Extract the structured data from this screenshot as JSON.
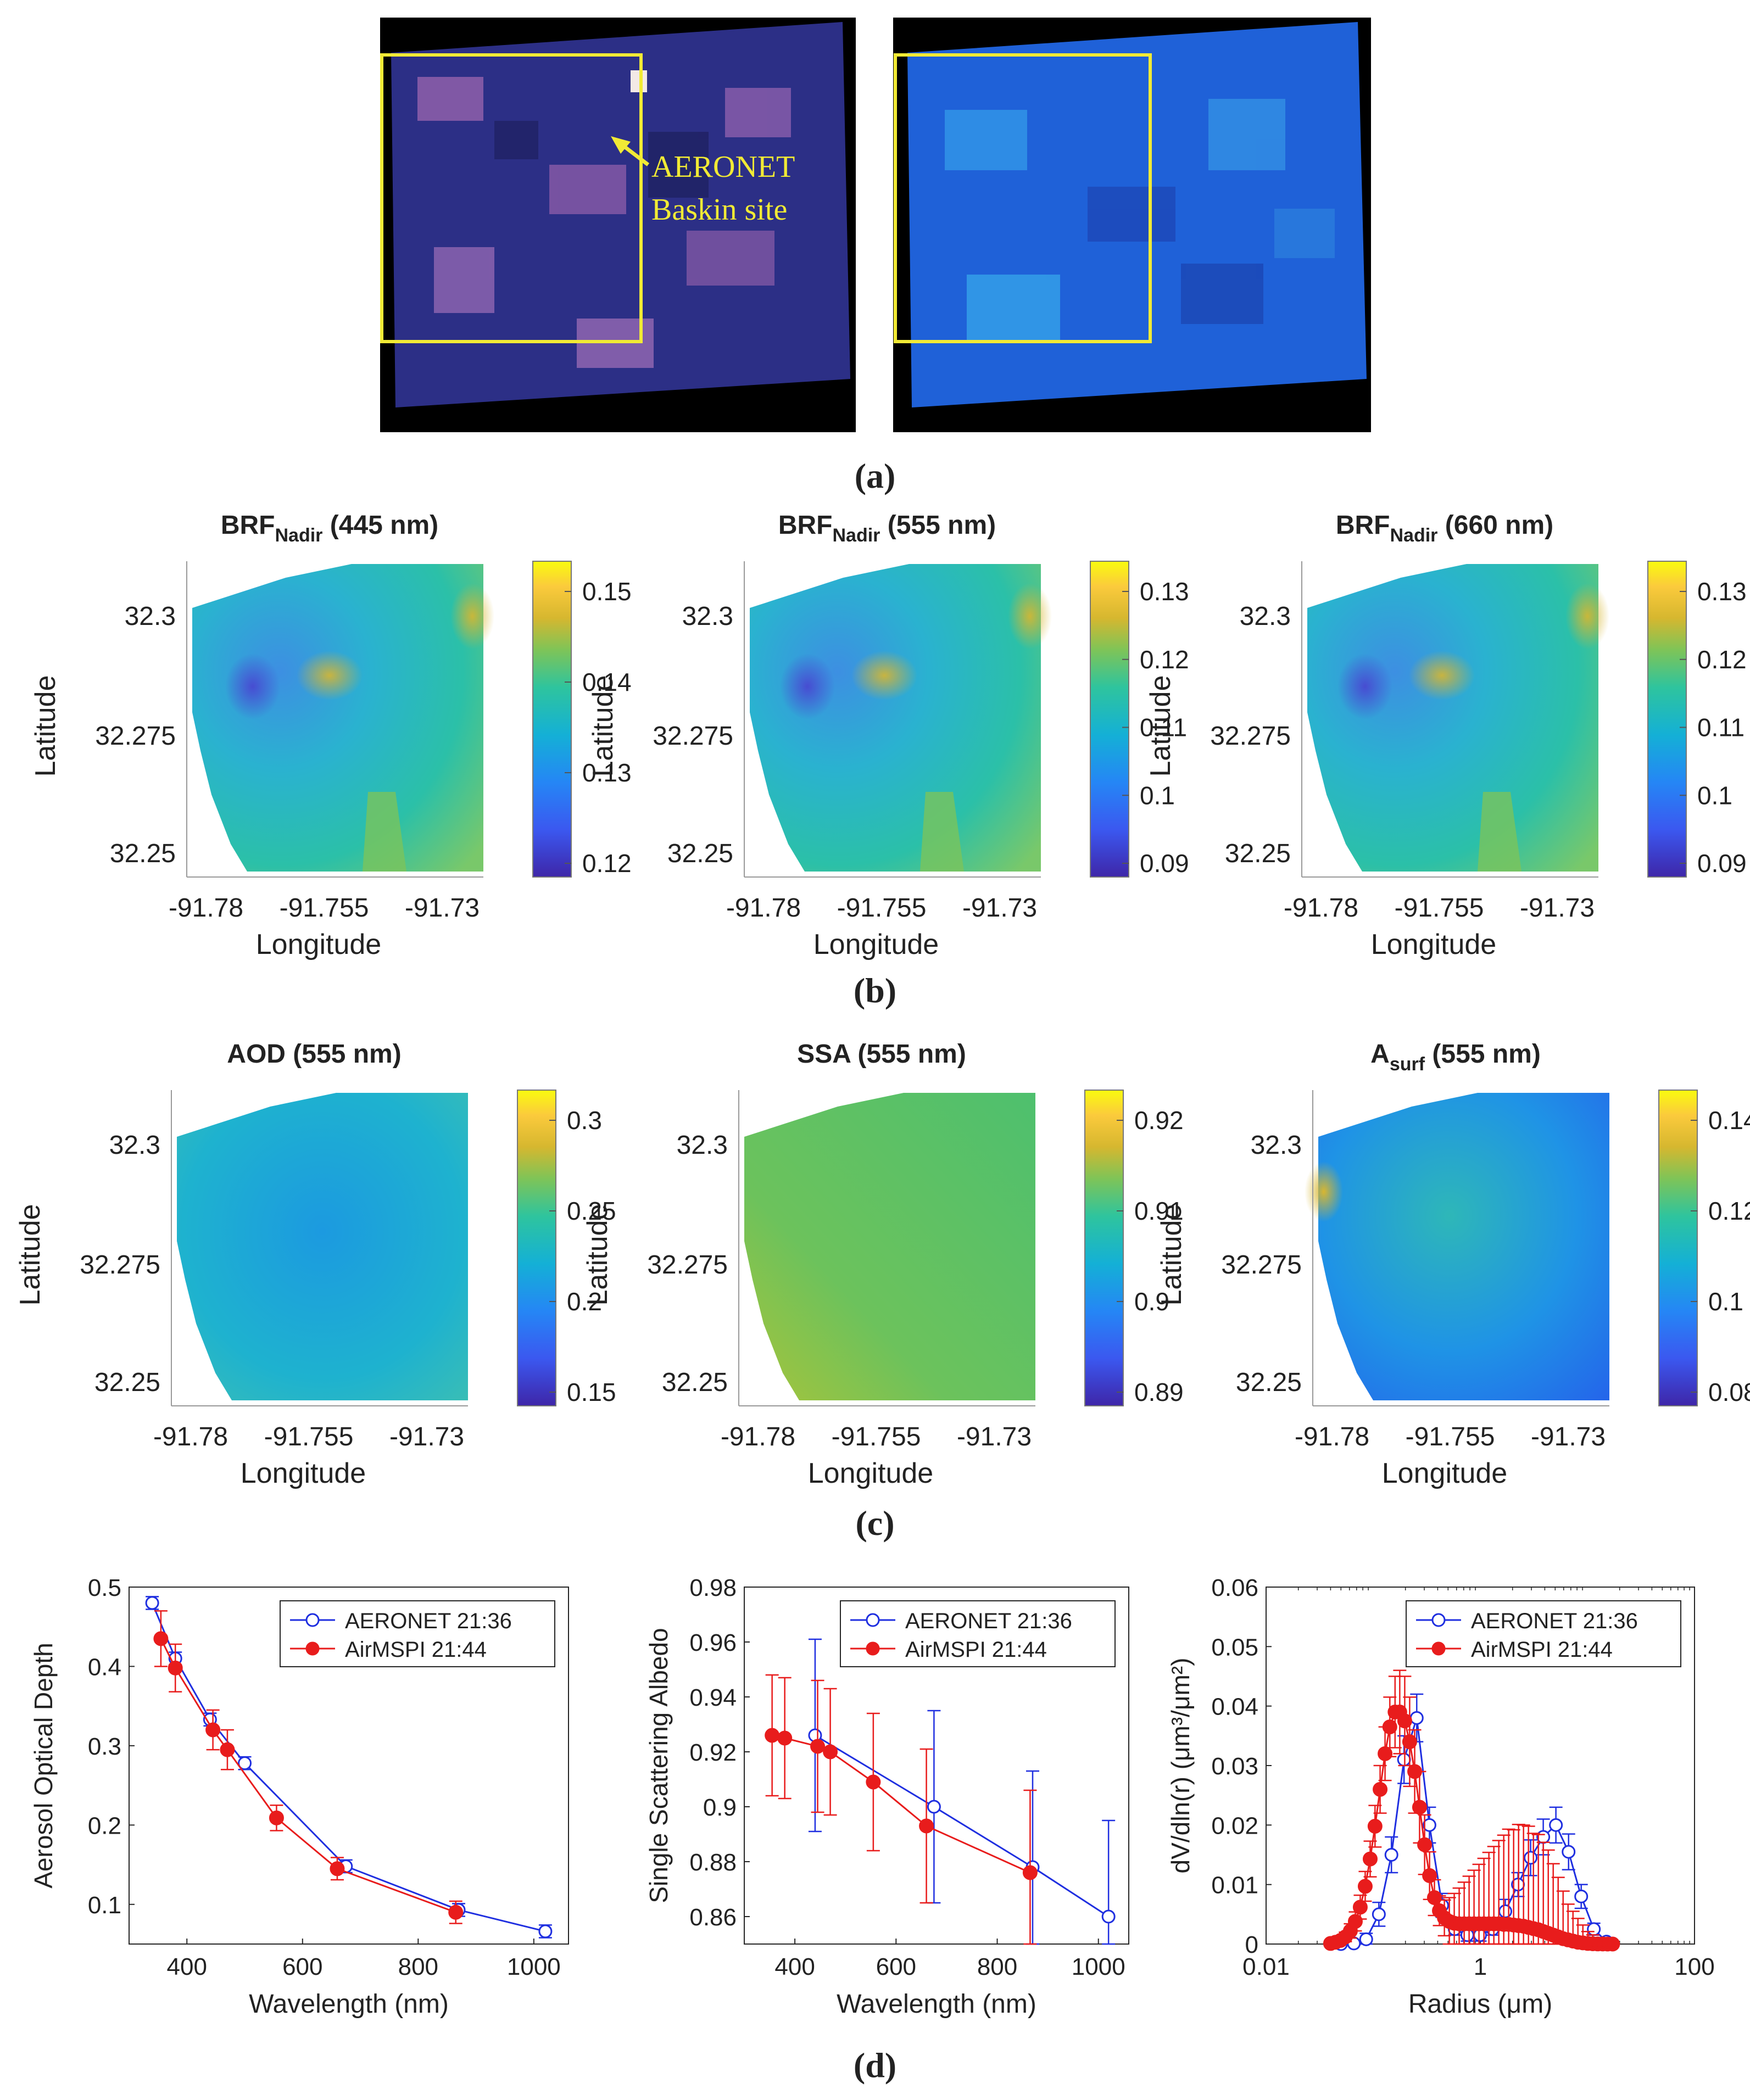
{
  "panel_labels": {
    "a": "(a)",
    "b": "(b)",
    "c": "(c)",
    "d": "(d)"
  },
  "satellite": {
    "annotation_line1": "AERONET",
    "annotation_line2": "Baskin site",
    "box_color": "#f1ea35",
    "left_image_tint": "#2c2f86",
    "right_image_tint": "#1f61d8"
  },
  "maps": {
    "xlabel": "Longitude",
    "ylabel": "Latitude",
    "xticks": [
      "-91.78",
      "-91.755",
      "-91.73"
    ],
    "yticks": [
      "32.3",
      "32.275",
      "32.25"
    ],
    "panels": [
      {
        "title_main": "BRF",
        "title_sub": "Nadir",
        "title_rest": " (445 nm)",
        "cbar_ticks": [
          "0.15",
          "0.14",
          "0.13",
          "0.12"
        ]
      },
      {
        "title_main": "BRF",
        "title_sub": "Nadir",
        "title_rest": " (555 nm)",
        "cbar_ticks": [
          "0.13",
          "0.12",
          "0.11",
          "0.1",
          "0.09"
        ]
      },
      {
        "title_main": "BRF",
        "title_sub": "Nadir",
        "title_rest": " (660 nm)",
        "cbar_ticks": [
          "0.13",
          "0.12",
          "0.11",
          "0.1",
          "0.09"
        ]
      },
      {
        "title_main": "AOD",
        "title_sub": "",
        "title_rest": " (555 nm)",
        "cbar_ticks": [
          "0.3",
          "0.25",
          "0.2",
          "0.15"
        ]
      },
      {
        "title_main": "SSA",
        "title_sub": "",
        "title_rest": " (555 nm)",
        "cbar_ticks": [
          "0.92",
          "0.91",
          "0.9",
          "0.89"
        ]
      },
      {
        "title_main": "A",
        "title_sub": "surf",
        "title_rest": " (555 nm)",
        "cbar_ticks": [
          "0.14",
          "0.12",
          "0.1",
          "0.08"
        ]
      }
    ]
  },
  "chart_data": [
    {
      "type": "line",
      "xlabel": "Wavelength (nm)",
      "ylabel": "Aerosol Optical Depth",
      "xlim": [
        300,
        1060
      ],
      "ylim": [
        0.05,
        0.5
      ],
      "xticks": [
        400,
        600,
        800,
        1000
      ],
      "yticks": [
        0.1,
        0.2,
        0.3,
        0.4,
        0.5
      ],
      "ytick_labels": [
        "0.1",
        "0.2",
        "0.3",
        "0.4",
        "0.5"
      ],
      "legend": "top-right",
      "series": [
        {
          "name": "AERONET 21:36",
          "color": "#1f2fe0",
          "marker": "open-circle",
          "x": [
            340,
            380,
            440,
            500,
            675,
            870,
            1020
          ],
          "y": [
            0.48,
            0.41,
            0.333,
            0.278,
            0.148,
            0.093,
            0.066
          ],
          "err": [
            0.008,
            0.008,
            0.008,
            0.008,
            0.008,
            0.008,
            0.008
          ]
        },
        {
          "name": "AirMSPI 21:44",
          "color": "#e81c1c",
          "marker": "filled-circle",
          "x": [
            355,
            380,
            445,
            470,
            555,
            660,
            865
          ],
          "y": [
            0.435,
            0.398,
            0.32,
            0.295,
            0.209,
            0.145,
            0.09
          ],
          "err": [
            0.035,
            0.03,
            0.025,
            0.025,
            0.016,
            0.014,
            0.014
          ]
        }
      ]
    },
    {
      "type": "line",
      "xlabel": "Wavelength (nm)",
      "ylabel": "Single Scattering Albedo",
      "xlim": [
        300,
        1060
      ],
      "ylim": [
        0.85,
        0.98
      ],
      "xticks": [
        400,
        600,
        800,
        1000
      ],
      "yticks": [
        0.86,
        0.88,
        0.9,
        0.92,
        0.94,
        0.96,
        0.98
      ],
      "ytick_labels": [
        "0.86",
        "0.88",
        "0.9",
        "0.92",
        "0.94",
        "0.96",
        "0.98"
      ],
      "legend": "top-right",
      "series": [
        {
          "name": "AERONET 21:36",
          "color": "#1f2fe0",
          "marker": "open-circle",
          "x": [
            440,
            675,
            870,
            1020
          ],
          "y": [
            0.926,
            0.9,
            0.878,
            0.86
          ],
          "err": [
            0.035,
            0.035,
            0.035,
            0.035
          ]
        },
        {
          "name": "AirMSPI 21:44",
          "color": "#e81c1c",
          "marker": "filled-circle",
          "x": [
            355,
            380,
            445,
            470,
            555,
            660,
            865
          ],
          "y": [
            0.926,
            0.925,
            0.922,
            0.92,
            0.909,
            0.893,
            0.876
          ],
          "err": [
            0.022,
            0.022,
            0.024,
            0.023,
            0.025,
            0.028,
            0.03
          ]
        }
      ]
    },
    {
      "type": "line",
      "xscale": "log",
      "xlabel": "Radius (μm)",
      "ylabel": "dV/dln(r) (μm³/μm²)",
      "xlim": [
        0.01,
        100
      ],
      "ylim": [
        0,
        0.06
      ],
      "xticks": [
        0.01,
        1,
        100
      ],
      "xtick_labels": [
        "0.01",
        "1",
        "100"
      ],
      "yticks": [
        0,
        0.01,
        0.02,
        0.03,
        0.04,
        0.05,
        0.06
      ],
      "ytick_labels": [
        "0",
        "0.01",
        "0.02",
        "0.03",
        "0.04",
        "0.05",
        "0.06"
      ],
      "legend": "top-right",
      "series": [
        {
          "name": "AERONET 21:36",
          "color": "#1f2fe0",
          "marker": "open-circle",
          "x": [
            0.05,
            0.066,
            0.086,
            0.113,
            0.148,
            0.194,
            0.255,
            0.335,
            0.44,
            0.577,
            0.757,
            0.994,
            1.305,
            1.712,
            2.247,
            2.949,
            3.87,
            5.08,
            6.67,
            8.75,
            11.48,
            15.07
          ],
          "y": [
            0.0,
            0.0001,
            0.0008,
            0.005,
            0.015,
            0.031,
            0.038,
            0.02,
            0.0065,
            0.0025,
            0.0015,
            0.0015,
            0.0025,
            0.0055,
            0.01,
            0.0145,
            0.018,
            0.02,
            0.0155,
            0.008,
            0.0025,
            0.0004
          ],
          "err": [
            0.0003,
            0.0004,
            0.001,
            0.002,
            0.003,
            0.004,
            0.004,
            0.003,
            0.002,
            0.001,
            0.001,
            0.001,
            0.001,
            0.002,
            0.002,
            0.003,
            0.003,
            0.003,
            0.003,
            0.002,
            0.001,
            0.0005
          ]
        },
        {
          "name": "AirMSPI 21:44",
          "color": "#e81c1c",
          "marker": "filled-circle",
          "x": [
            0.04,
            0.0445,
            0.0495,
            0.055,
            0.0612,
            0.0681,
            0.0757,
            0.0842,
            0.0937,
            0.104,
            0.116,
            0.129,
            0.143,
            0.16,
            0.177,
            0.197,
            0.219,
            0.244,
            0.271,
            0.302,
            0.336,
            0.373,
            0.415,
            0.462,
            0.514,
            0.571,
            0.635,
            0.707,
            0.786,
            0.874,
            0.972,
            1.081,
            1.203,
            1.338,
            1.488,
            1.655,
            1.84,
            2.047,
            2.277,
            2.532,
            2.816,
            3.132,
            3.484,
            3.875,
            4.31,
            4.793,
            5.331,
            5.93,
            6.595,
            7.335,
            8.158,
            9.074,
            10.09,
            11.22,
            12.48,
            13.88,
            15.44,
            17.18
          ],
          "y": [
            0.0001,
            0.0003,
            0.0006,
            0.0012,
            0.0022,
            0.0038,
            0.0062,
            0.0097,
            0.0143,
            0.0198,
            0.026,
            0.032,
            0.0365,
            0.039,
            0.039,
            0.0375,
            0.034,
            0.029,
            0.023,
            0.0167,
            0.0115,
            0.0078,
            0.0056,
            0.0044,
            0.0038,
            0.0035,
            0.0034,
            0.0034,
            0.0034,
            0.0034,
            0.0034,
            0.0034,
            0.0034,
            0.0034,
            0.0034,
            0.0033,
            0.0033,
            0.0032,
            0.0031,
            0.003,
            0.0028,
            0.0026,
            0.0024,
            0.0021,
            0.0018,
            0.0015,
            0.0012,
            0.0009,
            0.0007,
            0.0005,
            0.0003,
            0.0002,
            0.0001,
            5e-05,
            2e-05,
            1e-05,
            0.0,
            0.0
          ],
          "err": [
            0.0002,
            0.0003,
            0.0005,
            0.0008,
            0.0012,
            0.0016,
            0.002,
            0.0025,
            0.003,
            0.0035,
            0.004,
            0.0045,
            0.005,
            0.006,
            0.007,
            0.0075,
            0.0075,
            0.007,
            0.006,
            0.005,
            0.004,
            0.003,
            0.0025,
            0.003,
            0.004,
            0.005,
            0.006,
            0.007,
            0.008,
            0.009,
            0.01,
            0.011,
            0.012,
            0.013,
            0.014,
            0.015,
            0.016,
            0.016,
            0.017,
            0.017,
            0.017,
            0.016,
            0.016,
            0.015,
            0.014,
            0.012,
            0.01,
            0.008,
            0.006,
            0.005,
            0.004,
            0.003,
            0.002,
            0.0015,
            0.001,
            0.0007,
            0.0005,
            0.0003
          ]
        }
      ]
    }
  ]
}
